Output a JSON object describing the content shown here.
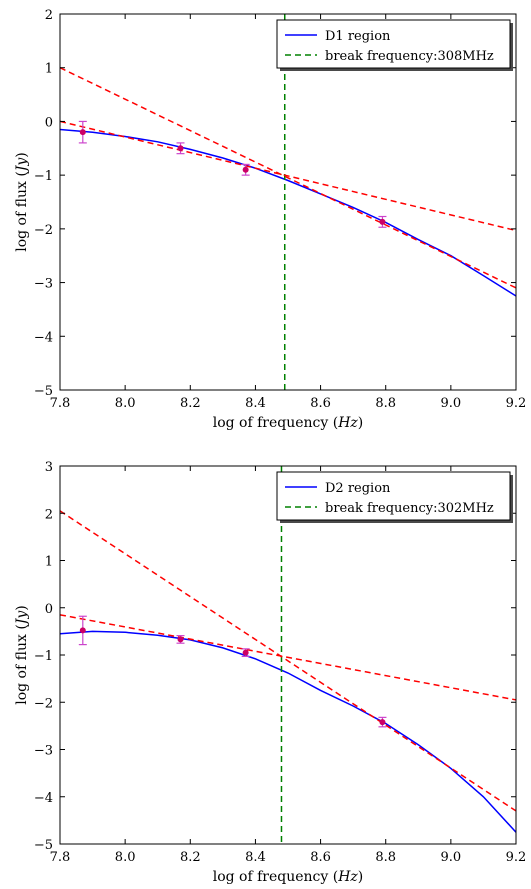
{
  "chart_data": [
    {
      "type": "line",
      "xlabel": "log of frequency (Hz)",
      "ylabel": "log of flux (Jy)",
      "xlim": [
        7.8,
        9.2
      ],
      "ylim": [
        -5,
        2
      ],
      "xticks": [
        "7.8",
        "8.0",
        "8.2",
        "8.4",
        "8.6",
        "8.8",
        "9.0",
        "9.2"
      ],
      "yticks": [
        "2",
        "1",
        "0",
        "−1",
        "−2",
        "−3",
        "−4",
        "−5"
      ],
      "legend": {
        "placement": "top-right",
        "entries": [
          "D1 region",
          "break frequency:308MHz"
        ]
      },
      "series": [
        {
          "name": "D1 region",
          "color": "#0000ff",
          "style": "solid",
          "kind": "curve",
          "x": [
            7.8,
            7.9,
            8.0,
            8.1,
            8.2,
            8.3,
            8.4,
            8.5,
            8.6,
            8.7,
            8.8,
            8.9,
            9.0,
            9.1,
            9.2
          ],
          "y": [
            -0.15,
            -0.2,
            -0.28,
            -0.38,
            -0.52,
            -0.68,
            -0.87,
            -1.1,
            -1.35,
            -1.6,
            -1.88,
            -2.2,
            -2.5,
            -2.87,
            -3.25
          ]
        },
        {
          "name": "break frequency:308MHz",
          "color": "#008000",
          "style": "dashed",
          "kind": "vline",
          "x": 8.49
        },
        {
          "color": "#ff0000",
          "style": "dashed",
          "kind": "line",
          "x": [
            7.8,
            9.2
          ],
          "y": [
            1.0,
            -3.1
          ]
        },
        {
          "color": "#ff0000",
          "style": "dashed",
          "kind": "line",
          "x": [
            7.8,
            9.2
          ],
          "y": [
            0.0,
            -2.03
          ]
        },
        {
          "color": "#cc0066",
          "kind": "errorbars",
          "errorbar_color": "#cc44cc",
          "x": [
            7.87,
            8.17,
            8.37,
            8.79
          ],
          "y": [
            -0.2,
            -0.5,
            -0.9,
            -1.87
          ],
          "err": [
            0.2,
            0.1,
            0.1,
            0.1
          ]
        }
      ]
    },
    {
      "type": "line",
      "xlabel": "log of frequency (Hz)",
      "ylabel": "log of flux (Jy)",
      "xlim": [
        7.8,
        9.2
      ],
      "ylim": [
        -5,
        3
      ],
      "xticks": [
        "7.8",
        "8.0",
        "8.2",
        "8.4",
        "8.6",
        "8.8",
        "9.0",
        "9.2"
      ],
      "yticks": [
        "3",
        "2",
        "1",
        "0",
        "−1",
        "−2",
        "−3",
        "−4",
        "−5"
      ],
      "legend": {
        "placement": "top-right",
        "entries": [
          "D2 region",
          "break frequency:302MHz"
        ]
      },
      "series": [
        {
          "name": "D2 region",
          "color": "#0000ff",
          "style": "solid",
          "kind": "curve",
          "x": [
            7.8,
            7.9,
            8.0,
            8.1,
            8.2,
            8.3,
            8.4,
            8.5,
            8.6,
            8.7,
            8.8,
            8.9,
            9.0,
            9.1,
            9.2
          ],
          "y": [
            -0.55,
            -0.5,
            -0.52,
            -0.58,
            -0.68,
            -0.85,
            -1.08,
            -1.38,
            -1.75,
            -2.08,
            -2.45,
            -2.9,
            -3.4,
            -4.0,
            -4.75
          ]
        },
        {
          "name": "break frequency:302MHz",
          "color": "#008000",
          "style": "dashed",
          "kind": "vline",
          "x": 8.48
        },
        {
          "color": "#ff0000",
          "style": "dashed",
          "kind": "line",
          "x": [
            7.8,
            9.2
          ],
          "y": [
            2.05,
            -4.3
          ]
        },
        {
          "color": "#ff0000",
          "style": "dashed",
          "kind": "line",
          "x": [
            7.8,
            9.2
          ],
          "y": [
            -0.15,
            -1.95
          ]
        },
        {
          "color": "#cc0066",
          "kind": "errorbars",
          "errorbar_color": "#cc44cc",
          "x": [
            7.87,
            8.17,
            8.37,
            8.79
          ],
          "y": [
            -0.48,
            -0.67,
            -0.95,
            -2.42
          ],
          "err": [
            0.3,
            0.08,
            0.08,
            0.1
          ]
        }
      ]
    }
  ]
}
